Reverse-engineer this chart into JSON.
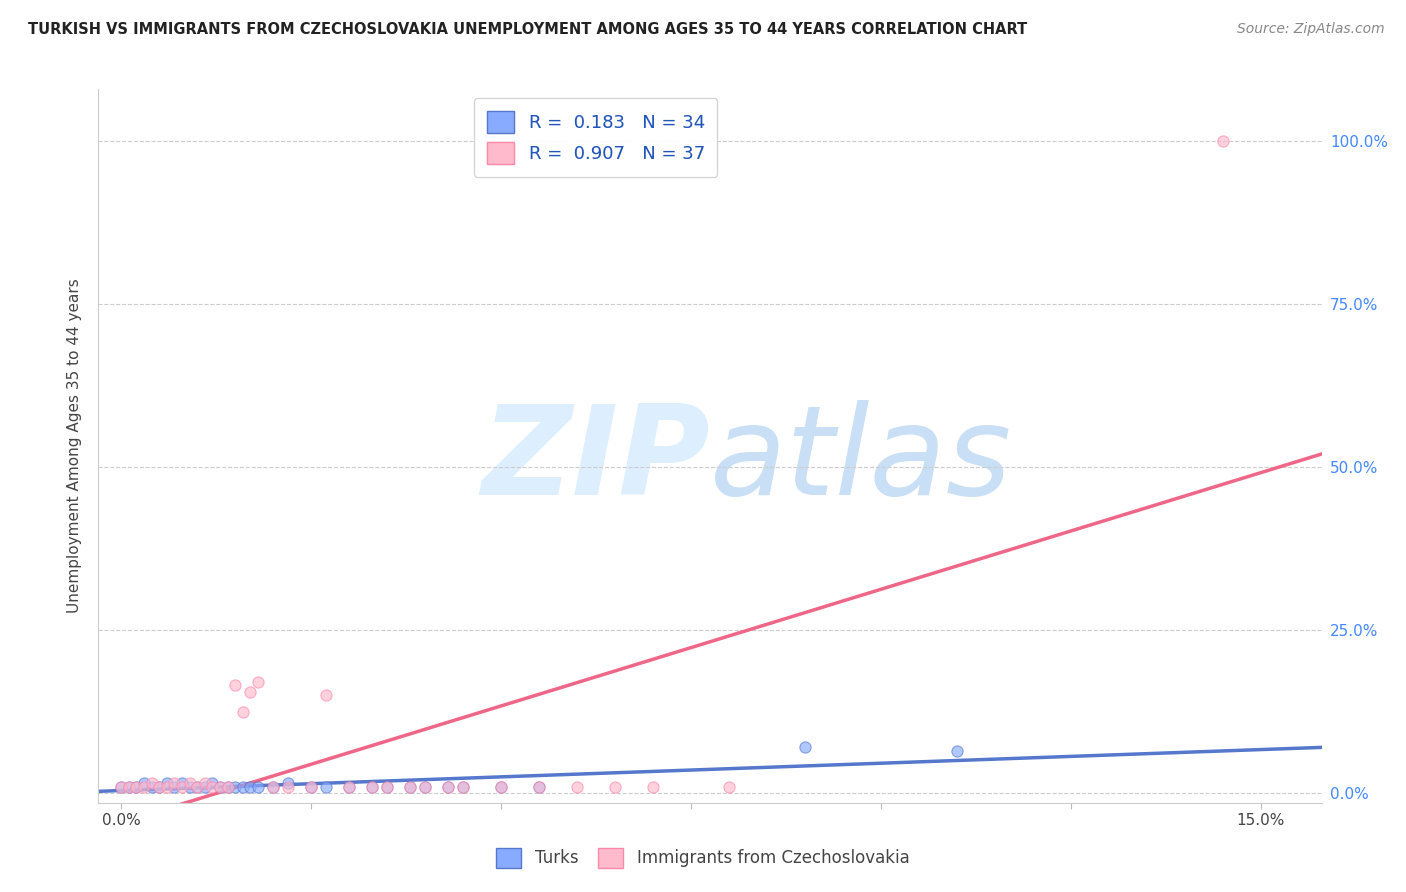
{
  "title": "TURKISH VS IMMIGRANTS FROM CZECHOSLOVAKIA UNEMPLOYMENT AMONG AGES 35 TO 44 YEARS CORRELATION CHART",
  "source_text": "Source: ZipAtlas.com",
  "ylabel": "Unemployment Among Ages 35 to 44 years",
  "y_tick_labels": [
    "0.0%",
    "25.0%",
    "50.0%",
    "75.0%",
    "100.0%"
  ],
  "y_tick_values": [
    0.0,
    0.25,
    0.5,
    0.75,
    1.0
  ],
  "x_ticks": [
    0.0,
    0.025,
    0.05,
    0.075,
    0.1,
    0.125,
    0.15
  ],
  "x_tick_labels": [
    "0.0%",
    "",
    "",
    "",
    "",
    "",
    "15.0%"
  ],
  "legend_turks_R": "0.183",
  "legend_turks_N": "34",
  "legend_czech_R": "0.907",
  "legend_czech_N": "37",
  "turks_color": "#88aaff",
  "turks_color_edge": "#5577cc",
  "czech_color": "#ffbbcc",
  "czech_color_edge": "#ff88aa",
  "trend_turks_color": "#5577cc",
  "trend_czech_color": "#ee6688",
  "watermark_color": "#ddeeff",
  "background_color": "#ffffff",
  "turks_x": [
    0.0,
    0.001,
    0.002,
    0.003,
    0.004,
    0.005,
    0.006,
    0.007,
    0.008,
    0.009,
    0.01,
    0.011,
    0.012,
    0.013,
    0.014,
    0.015,
    0.016,
    0.017,
    0.018,
    0.02,
    0.022,
    0.025,
    0.027,
    0.03,
    0.033,
    0.035,
    0.038,
    0.04,
    0.043,
    0.045,
    0.05,
    0.055,
    0.09,
    0.11
  ],
  "turks_y": [
    0.01,
    0.01,
    0.01,
    0.015,
    0.01,
    0.01,
    0.015,
    0.01,
    0.015,
    0.01,
    0.01,
    0.01,
    0.015,
    0.01,
    0.01,
    0.01,
    0.01,
    0.01,
    0.01,
    0.01,
    0.015,
    0.01,
    0.01,
    0.01,
    0.01,
    0.01,
    0.01,
    0.01,
    0.01,
    0.01,
    0.01,
    0.01,
    0.07,
    0.065
  ],
  "czech_x": [
    0.0,
    0.001,
    0.002,
    0.003,
    0.004,
    0.005,
    0.006,
    0.007,
    0.008,
    0.009,
    0.01,
    0.011,
    0.012,
    0.013,
    0.014,
    0.015,
    0.016,
    0.017,
    0.018,
    0.02,
    0.022,
    0.025,
    0.027,
    0.03,
    0.033,
    0.035,
    0.038,
    0.04,
    0.043,
    0.045,
    0.05,
    0.055,
    0.06,
    0.065,
    0.07,
    0.08,
    0.145
  ],
  "czech_y": [
    0.01,
    0.01,
    0.01,
    0.01,
    0.015,
    0.01,
    0.01,
    0.015,
    0.01,
    0.015,
    0.01,
    0.015,
    0.01,
    0.01,
    0.01,
    0.165,
    0.125,
    0.155,
    0.17,
    0.01,
    0.01,
    0.01,
    0.15,
    0.01,
    0.01,
    0.01,
    0.01,
    0.01,
    0.01,
    0.01,
    0.01,
    0.01,
    0.01,
    0.01,
    0.01,
    0.01,
    1.0
  ],
  "marker_size": 65,
  "xlim": [
    -0.003,
    0.158
  ],
  "ylim": [
    -0.015,
    1.08
  ]
}
